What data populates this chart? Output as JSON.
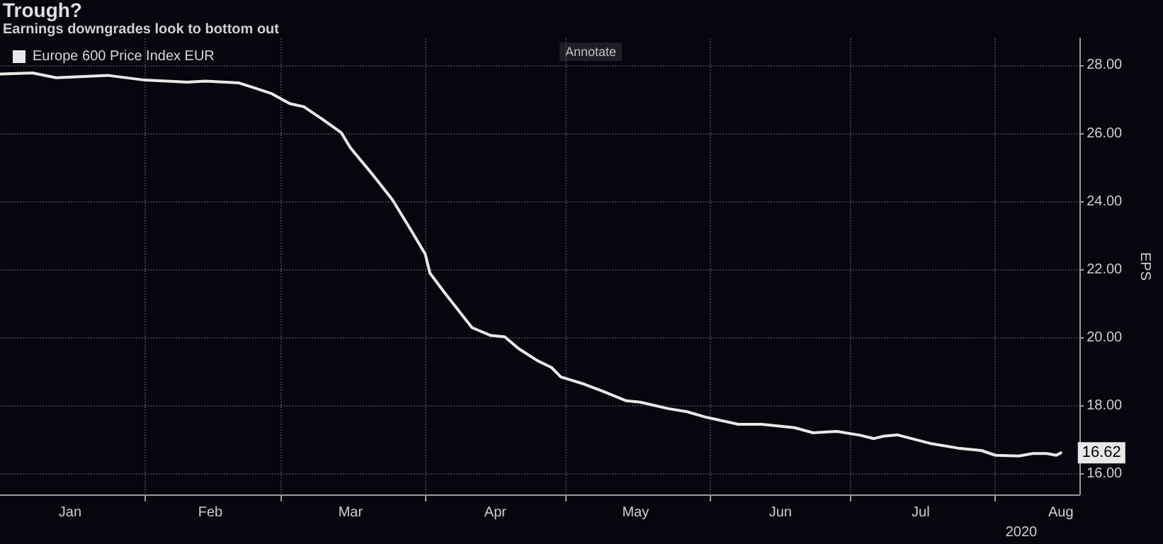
{
  "chart_data": {
    "type": "line",
    "title": "Trough?",
    "subtitle": "Earnings downgrades look to bottom out",
    "xlabel": "2020",
    "ylabel": "EPS",
    "annotations": [
      "Annotate"
    ],
    "x": [
      "2020-01-01",
      "2020-01-08",
      "2020-01-13",
      "2020-01-24",
      "2020-02-01",
      "2020-02-10",
      "2020-02-14",
      "2020-02-21",
      "2020-02-24",
      "2020-02-28",
      "2020-03-03",
      "2020-03-06",
      "2020-03-10",
      "2020-03-14",
      "2020-03-16",
      "2020-03-21",
      "2020-03-25",
      "2020-03-29",
      "2020-04-01",
      "2020-04-02",
      "2020-04-05",
      "2020-04-09",
      "2020-04-11",
      "2020-04-15",
      "2020-04-18",
      "2020-04-21",
      "2020-04-25",
      "2020-04-28",
      "2020-04-30",
      "2020-05-05",
      "2020-05-09",
      "2020-05-14",
      "2020-05-17",
      "2020-05-23",
      "2020-05-27",
      "2020-05-31",
      "2020-06-07",
      "2020-06-12",
      "2020-06-19",
      "2020-06-23",
      "2020-06-28",
      "2020-07-03",
      "2020-07-06",
      "2020-07-08",
      "2020-07-11",
      "2020-07-18",
      "2020-07-24",
      "2020-07-29",
      "2020-08-01",
      "2020-08-06",
      "2020-08-09",
      "2020-08-12",
      "2020-08-14",
      "2020-08-15"
    ],
    "series": [
      {
        "name": "Europe 600 Price Index EUR",
        "color": "#e8e8e8",
        "values": [
          27.75,
          27.78,
          27.64,
          27.71,
          27.57,
          27.51,
          27.54,
          27.49,
          27.36,
          27.18,
          26.88,
          26.79,
          26.42,
          26.03,
          25.58,
          24.75,
          24.05,
          23.15,
          22.46,
          21.9,
          21.35,
          20.65,
          20.3,
          20.07,
          20.03,
          19.68,
          19.33,
          19.13,
          18.85,
          18.64,
          18.43,
          18.15,
          18.11,
          17.92,
          17.83,
          17.67,
          17.46,
          17.46,
          17.36,
          17.21,
          17.25,
          17.14,
          17.04,
          17.11,
          17.15,
          16.9,
          16.76,
          16.69,
          16.55,
          16.53,
          16.6,
          16.6,
          16.55,
          16.62
        ],
        "value_labels": [
          null,
          null,
          null,
          null,
          null,
          null,
          null,
          null,
          null,
          null,
          null,
          null,
          null,
          null,
          null,
          null,
          null,
          null,
          null,
          null,
          null,
          null,
          null,
          null,
          null,
          null,
          null,
          null,
          null,
          null,
          null,
          null,
          null,
          null,
          null,
          null,
          null,
          null,
          null,
          null,
          null,
          null,
          null,
          null,
          null,
          null,
          null,
          null,
          null,
          null,
          null,
          null,
          null,
          "16.62"
        ]
      }
    ],
    "xlim": [
      "2020-01-01",
      "2020-08-19"
    ],
    "xticks": [
      {
        "value": "2020-01-16",
        "label": "Jan"
      },
      {
        "value": "2020-02-01",
        "label": null
      },
      {
        "value": "2020-02-15",
        "label": "Feb"
      },
      {
        "value": "2020-03-01",
        "label": null
      },
      {
        "value": "2020-03-16",
        "label": "Mar"
      },
      {
        "value": "2020-04-01",
        "label": null
      },
      {
        "value": "2020-04-16",
        "label": "Apr"
      },
      {
        "value": "2020-05-01",
        "label": null
      },
      {
        "value": "2020-05-16",
        "label": "May"
      },
      {
        "value": "2020-06-01",
        "label": null
      },
      {
        "value": "2020-06-16",
        "label": "Jun"
      },
      {
        "value": "2020-07-01",
        "label": null
      },
      {
        "value": "2020-07-16",
        "label": "Jul"
      },
      {
        "value": "2020-08-01",
        "label": null
      },
      {
        "value": "2020-08-15",
        "label": "Aug"
      }
    ],
    "ylim": [
      15.4,
      28.8
    ],
    "yticks": [
      {
        "value": 16,
        "label": "16.00"
      },
      {
        "value": 18,
        "label": "18.00"
      },
      {
        "value": 20,
        "label": "20.00"
      },
      {
        "value": 22,
        "label": "22.00"
      },
      {
        "value": 24,
        "label": "24.00"
      },
      {
        "value": 26,
        "label": "26.00"
      },
      {
        "value": 28,
        "label": "28.00"
      }
    ],
    "grid": true,
    "legend": "top left",
    "marker": "none",
    "line_style": "solid"
  }
}
